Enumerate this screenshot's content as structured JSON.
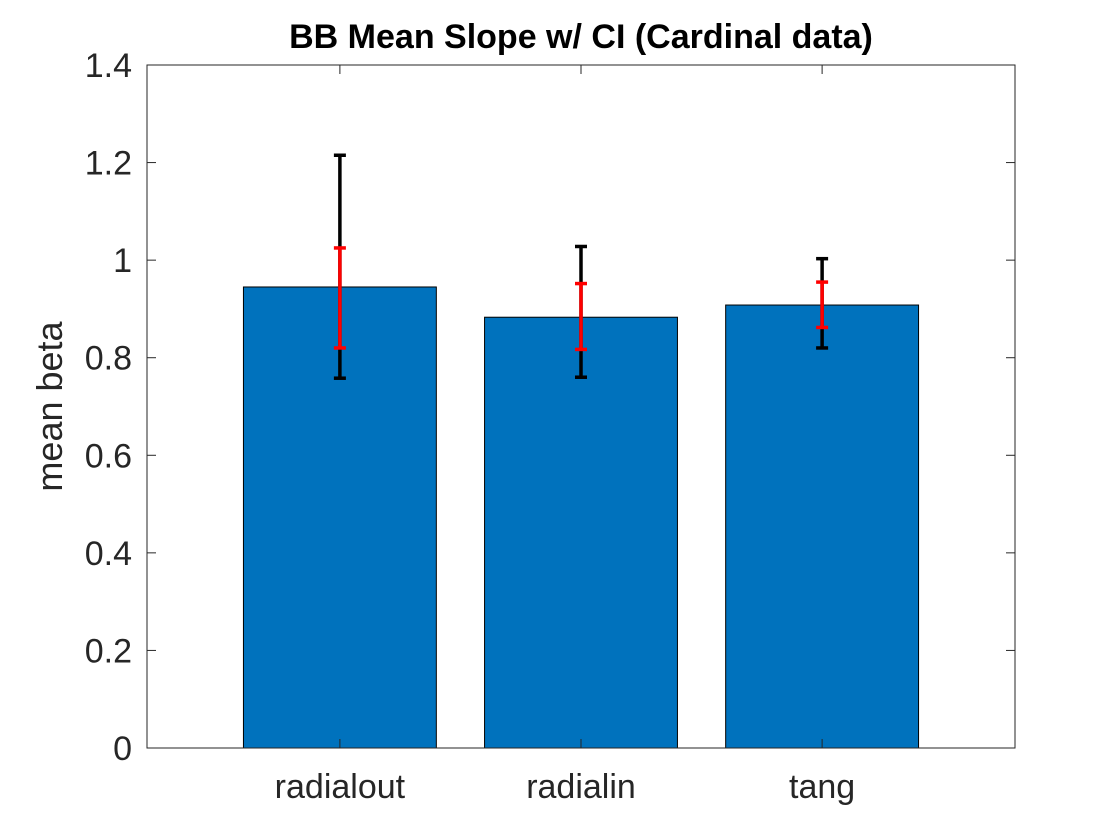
{
  "chart_data": {
    "type": "bar",
    "title": "BB Mean Slope w/ CI (Cardinal data)",
    "xlabel": "",
    "ylabel": "mean beta",
    "categories": [
      "radialout",
      "radialin",
      "tang"
    ],
    "values": [
      0.945,
      0.883,
      0.908
    ],
    "error_bars": [
      {
        "name": "",
        "color": "#000000",
        "lower": [
          0.758,
          0.76,
          0.82
        ],
        "upper": [
          1.215,
          1.028,
          1.003
        ]
      },
      {
        "name": "",
        "color": "#ff0000",
        "lower": [
          0.82,
          0.817,
          0.862
        ],
        "upper": [
          1.025,
          0.952,
          0.955
        ]
      }
    ],
    "ylim": [
      0,
      1.4
    ],
    "xlim": [
      0.2,
      3.8
    ],
    "yticks": [
      0,
      0.2,
      0.4,
      0.6,
      0.8,
      1,
      1.2,
      1.4
    ],
    "ytick_labels": [
      "0",
      "0.2",
      "0.4",
      "0.6",
      "0.8",
      "1",
      "1.2",
      "1.4"
    ],
    "bar_color": "#0072bd",
    "grid": false,
    "box": true
  }
}
